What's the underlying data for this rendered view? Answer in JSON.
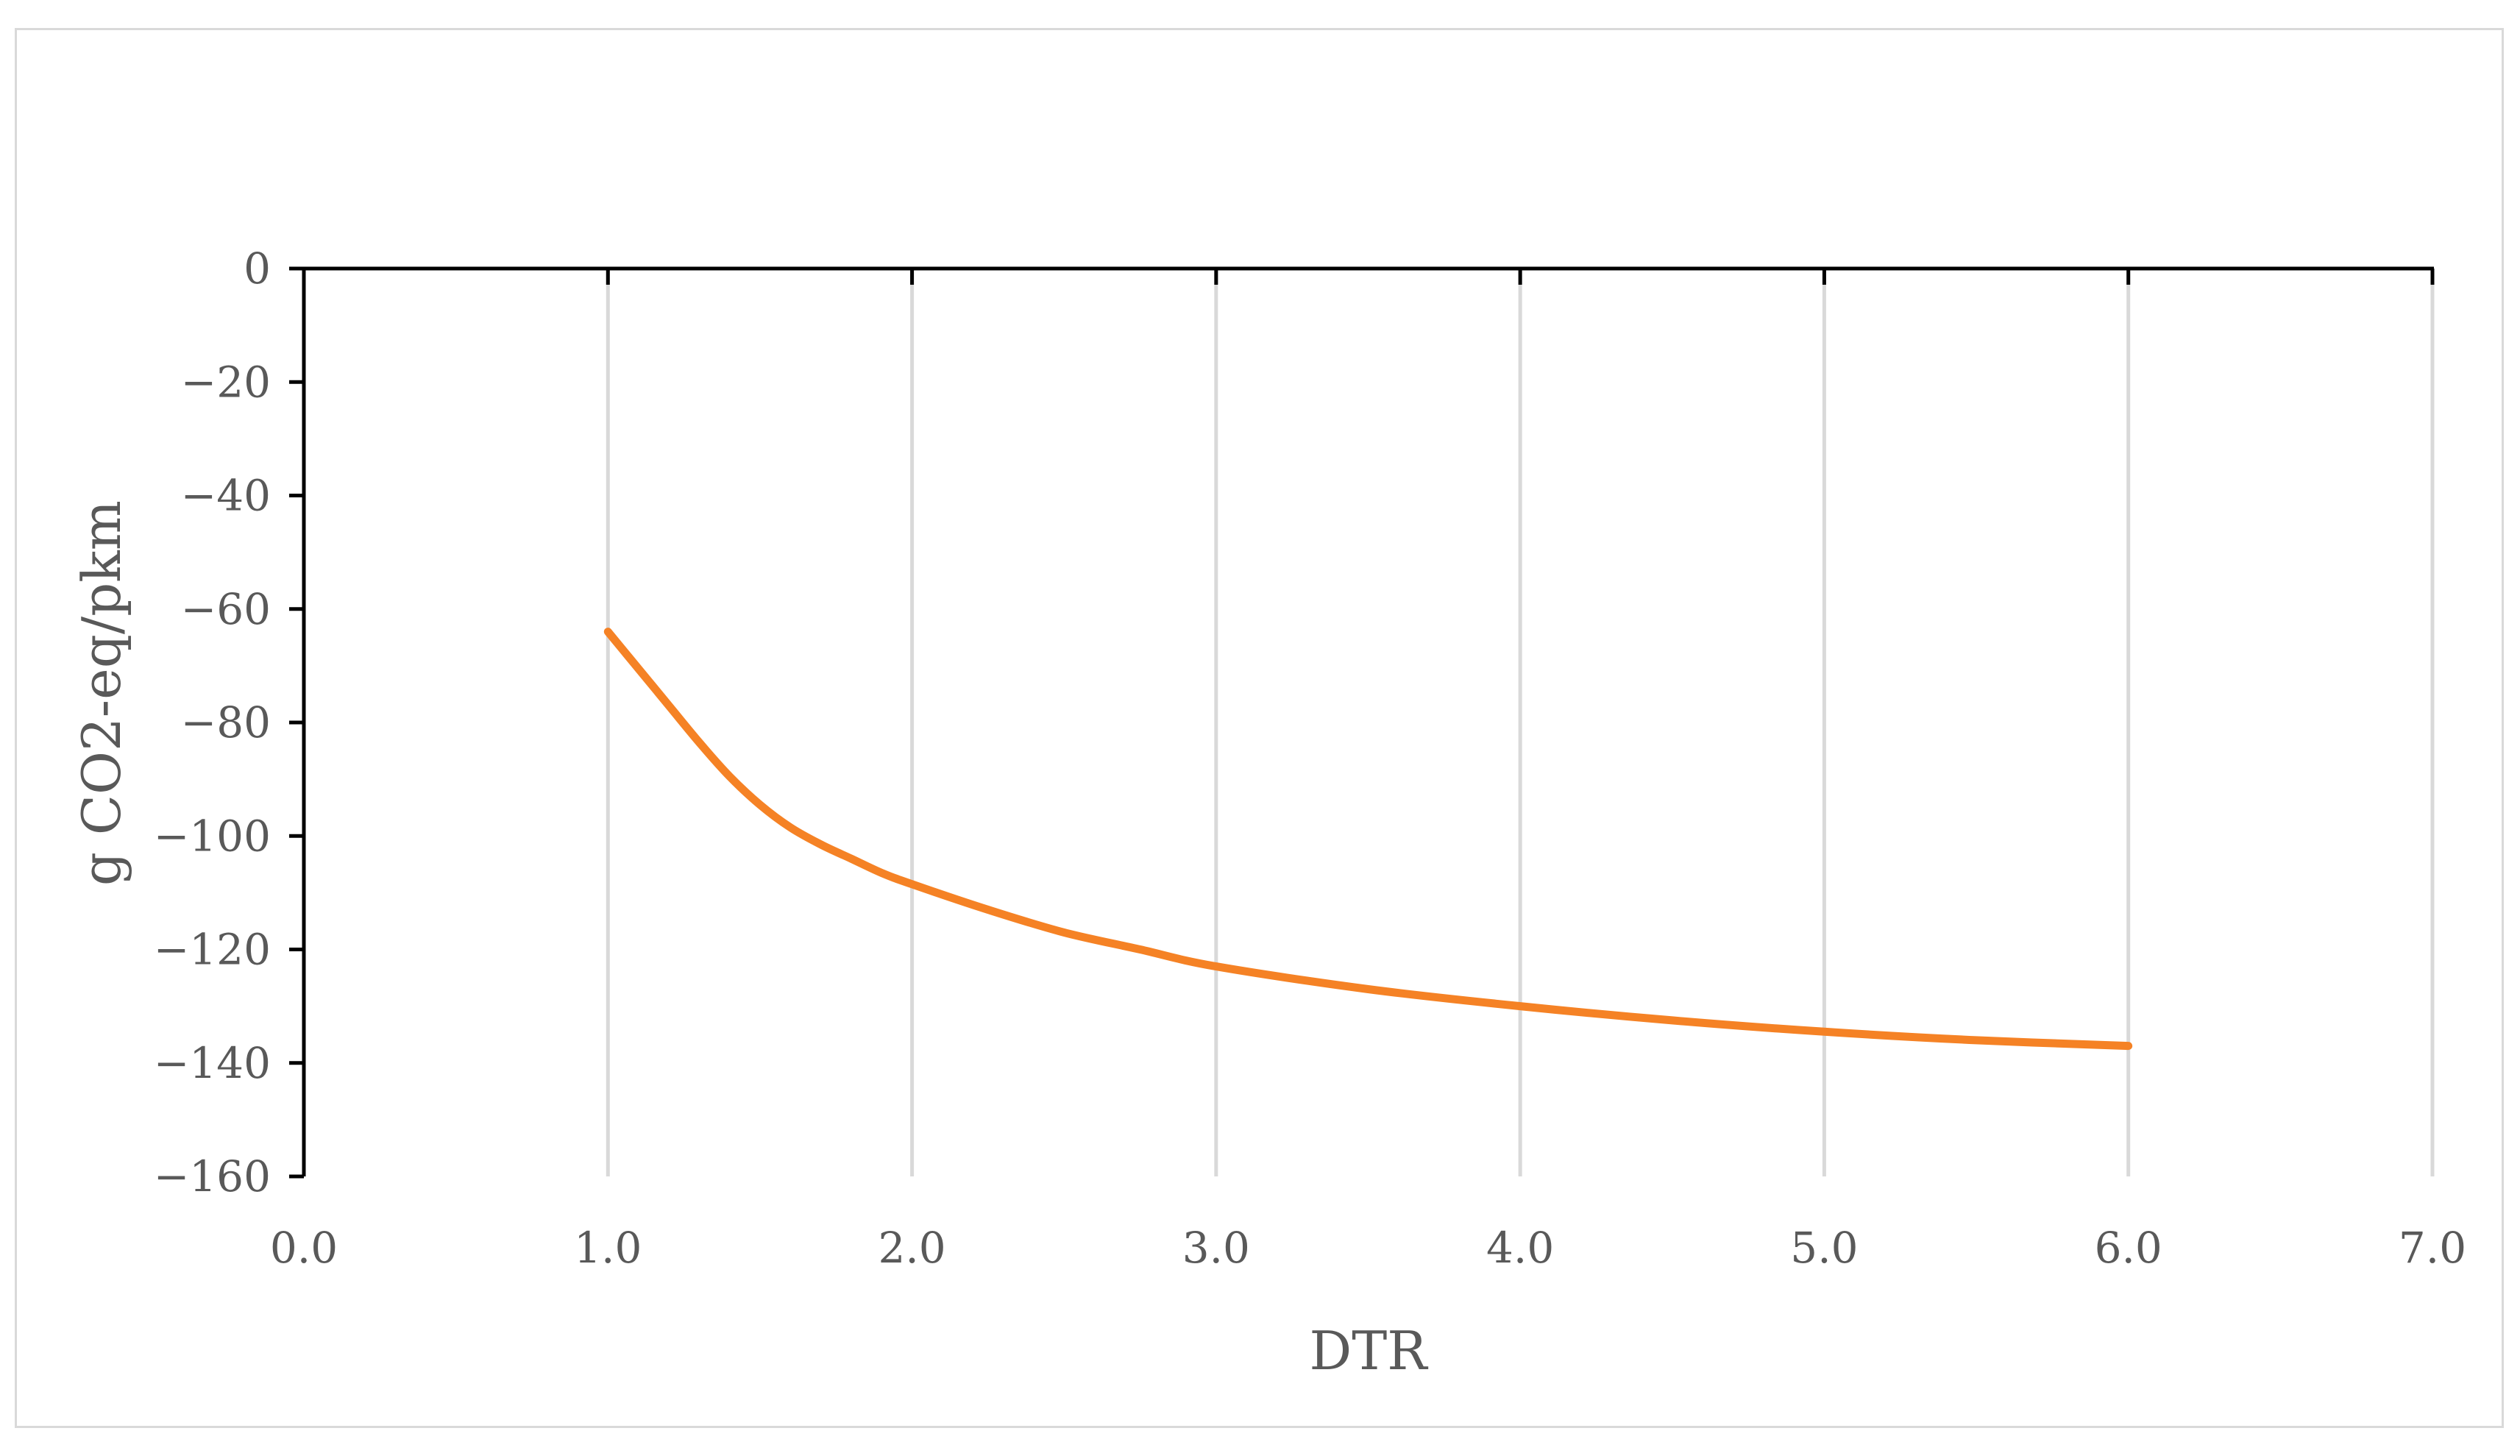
{
  "chart_data": {
    "type": "line",
    "title": "",
    "xlabel": "DTR",
    "ylabel": "g CO2-eq/pkm",
    "xlim": [
      0,
      7
    ],
    "ylim": [
      -160,
      0
    ],
    "x_ticks": [
      "0.0",
      "1.0",
      "2.0",
      "3.0",
      "4.0",
      "5.0",
      "6.0",
      "7.0"
    ],
    "y_ticks": [
      "0",
      "−20",
      "−40",
      "−60",
      "−80",
      "−100",
      "−120",
      "−140",
      "−160"
    ],
    "grid": "vertical",
    "legend": "none",
    "series": [
      {
        "color": "#f58225",
        "x": [
          1.0,
          1.1,
          1.2,
          1.3,
          1.4,
          1.5,
          1.6,
          1.7,
          1.8,
          1.9,
          2.0,
          2.25,
          2.5,
          2.75,
          3.0,
          3.5,
          4.0,
          4.5,
          5.0,
          5.5,
          6.0
        ],
        "y": [
          -64,
          -70.5,
          -77,
          -83.5,
          -89.5,
          -94.5,
          -98.5,
          -101.5,
          -104,
          -106.5,
          -108.5,
          -113,
          -117,
          -120,
          -123,
          -127,
          -130,
          -132.5,
          -134.5,
          -136,
          -137
        ]
      }
    ]
  }
}
